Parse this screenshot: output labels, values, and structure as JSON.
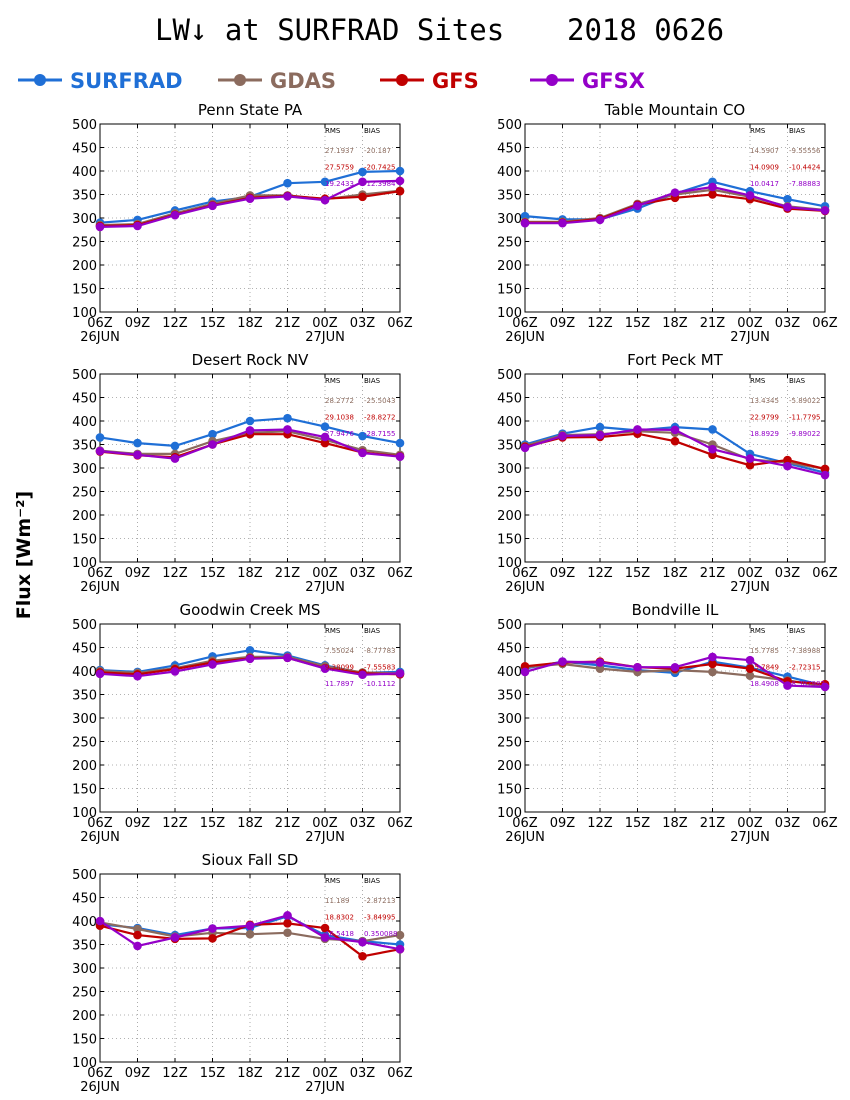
{
  "chart_data": {
    "type": "line",
    "title": "LW↓ at SURFRAD Sites",
    "date": "2018 0626",
    "ylabel": "Flux [Wm⁻²]",
    "legend_position": "top",
    "x_ticks": [
      "06Z",
      "09Z",
      "12Z",
      "15Z",
      "18Z",
      "21Z",
      "00Z",
      "03Z",
      "06Z"
    ],
    "x_date_labels": [
      {
        "at": 0,
        "text": "26JUN"
      },
      {
        "at": 6,
        "text": "27JUN"
      }
    ],
    "y_ticks": [
      100,
      150,
      200,
      250,
      300,
      350,
      400,
      450,
      500
    ],
    "ylim": [
      100,
      500
    ],
    "grid": true,
    "stats_headers": [
      "RMS",
      "BIAS"
    ],
    "series_meta": [
      {
        "key": "SURFRAD",
        "name": "SURFRAD",
        "color": "#1f6fd6"
      },
      {
        "key": "GDAS",
        "name": "GDAS",
        "color": "#8b6b5e"
      },
      {
        "key": "GFS",
        "name": "GFS",
        "color": "#c00000"
      },
      {
        "key": "GFSX",
        "name": "GFSX",
        "color": "#9400c8"
      }
    ],
    "panels": [
      {
        "title": "Penn State PA",
        "series": {
          "SURFRAD": [
            290,
            296,
            316,
            335,
            345,
            374,
            377,
            398,
            400
          ],
          "GDAS": [
            285,
            287,
            310,
            330,
            348,
            348,
            340,
            350,
            358
          ],
          "GFS": [
            283,
            285,
            307,
            327,
            343,
            347,
            341,
            345,
            357
          ],
          "GFSX": [
            281,
            283,
            306,
            326,
            341,
            346,
            338,
            377,
            379
          ]
        },
        "stats": [
          {
            "model": "GDAS",
            "rms": "27.1937",
            "bias": "-20.187"
          },
          {
            "model": "GFS",
            "rms": "27.5759",
            "bias": "-20.7425"
          },
          {
            "model": "GFSX",
            "rms": "19.2433",
            "bias": "-12.3984"
          }
        ]
      },
      {
        "title": "Table Mountain CO",
        "series": {
          "SURFRAD": [
            304,
            297,
            297,
            320,
            352,
            377,
            357,
            340,
            325
          ],
          "GDAS": [
            292,
            292,
            300,
            330,
            350,
            360,
            345,
            325,
            317
          ],
          "GFS": [
            290,
            290,
            298,
            328,
            343,
            350,
            340,
            320,
            315
          ],
          "GFSX": [
            289,
            289,
            296,
            326,
            354,
            366,
            348,
            323,
            316
          ]
        },
        "stats": [
          {
            "model": "GDAS",
            "rms": "14.5907",
            "bias": "-9.55556"
          },
          {
            "model": "GFS",
            "rms": "14.0909",
            "bias": "-10.4424"
          },
          {
            "model": "GFSX",
            "rms": "10.0417",
            "bias": "-7.88883"
          }
        ]
      },
      {
        "title": "Desert Rock NV",
        "series": {
          "SURFRAD": [
            365,
            353,
            347,
            372,
            400,
            406,
            388,
            368,
            353
          ],
          "GDAS": [
            337,
            330,
            330,
            357,
            375,
            378,
            360,
            338,
            328
          ],
          "GFS": [
            335,
            327,
            323,
            350,
            372,
            372,
            353,
            333,
            325
          ],
          "GFSX": [
            336,
            328,
            320,
            350,
            380,
            382,
            366,
            332,
            324
          ]
        },
        "stats": [
          {
            "model": "GDAS",
            "rms": "28.2772",
            "bias": "-25.5043"
          },
          {
            "model": "GFS",
            "rms": "29.1038",
            "bias": "-28.8272"
          },
          {
            "model": "GFSX",
            "rms": "27.9476",
            "bias": "-28.7155"
          }
        ]
      },
      {
        "title": "Fort Peck MT",
        "series": {
          "SURFRAD": [
            350,
            373,
            387,
            380,
            387,
            382,
            330,
            310,
            290
          ],
          "GDAS": [
            347,
            370,
            372,
            378,
            375,
            350,
            318,
            312,
            298
          ],
          "GFS": [
            345,
            365,
            366,
            373,
            357,
            328,
            306,
            317,
            298
          ],
          "GFSX": [
            343,
            368,
            370,
            382,
            381,
            340,
            320,
            304,
            285
          ]
        },
        "stats": [
          {
            "model": "GDAS",
            "rms": "13.4345",
            "bias": "-5.89022"
          },
          {
            "model": "GFS",
            "rms": "22.9799",
            "bias": "-11.7795"
          },
          {
            "model": "GFSX",
            "rms": "18.8929",
            "bias": "-9.89022"
          }
        ]
      },
      {
        "title": "Goodwin Creek MS",
        "series": {
          "SURFRAD": [
            402,
            398,
            412,
            431,
            444,
            433,
            412,
            396,
            398
          ],
          "GDAS": [
            400,
            396,
            406,
            422,
            430,
            430,
            410,
            397,
            395
          ],
          "GFS": [
            397,
            393,
            404,
            418,
            427,
            428,
            406,
            395,
            393
          ],
          "GFSX": [
            394,
            389,
            399,
            414,
            426,
            428,
            405,
            392,
            395
          ]
        },
        "stats": [
          {
            "model": "GDAS",
            "rms": "7.55024",
            "bias": "-8.77783"
          },
          {
            "model": "GFS",
            "rms": "9.38099",
            "bias": "-7.55583"
          },
          {
            "model": "GFSX",
            "rms": "11.7897",
            "bias": "-10.1112"
          }
        ]
      },
      {
        "title": "Bondville IL",
        "series": {
          "SURFRAD": [
            405,
            420,
            412,
            402,
            396,
            420,
            407,
            388,
            368
          ],
          "GDAS": [
            408,
            415,
            405,
            398,
            402,
            398,
            390,
            380,
            367
          ],
          "GFS": [
            410,
            418,
            420,
            408,
            405,
            415,
            405,
            378,
            372
          ],
          "GFSX": [
            398,
            420,
            418,
            408,
            408,
            430,
            423,
            369,
            366
          ]
        },
        "stats": [
          {
            "model": "GDAS",
            "rms": "15.7785",
            "bias": "-7.38988"
          },
          {
            "model": "GFS",
            "rms": "15.7849",
            "bias": "-2.72315"
          },
          {
            "model": "GFSX",
            "rms": "18.4908",
            "bias": "-8.387983"
          }
        ]
      },
      {
        "title": "Sioux Fall SD",
        "series": {
          "SURFRAD": [
            393,
            385,
            370,
            384,
            385,
            410,
            370,
            357,
            350
          ],
          "GDAS": [
            397,
            383,
            367,
            375,
            372,
            375,
            362,
            357,
            370
          ],
          "GFS": [
            390,
            370,
            362,
            363,
            392,
            395,
            385,
            325,
            340
          ],
          "GFSX": [
            400,
            347,
            365,
            384,
            390,
            412,
            365,
            355,
            340
          ]
        },
        "stats": [
          {
            "model": "GDAS",
            "rms": "11.189",
            "bias": "-2.87213"
          },
          {
            "model": "GFS",
            "rms": "18.8302",
            "bias": "-3.84995"
          },
          {
            "model": "GFSX",
            "rms": "16.5418",
            "bias": "0.350088"
          }
        ]
      }
    ]
  }
}
